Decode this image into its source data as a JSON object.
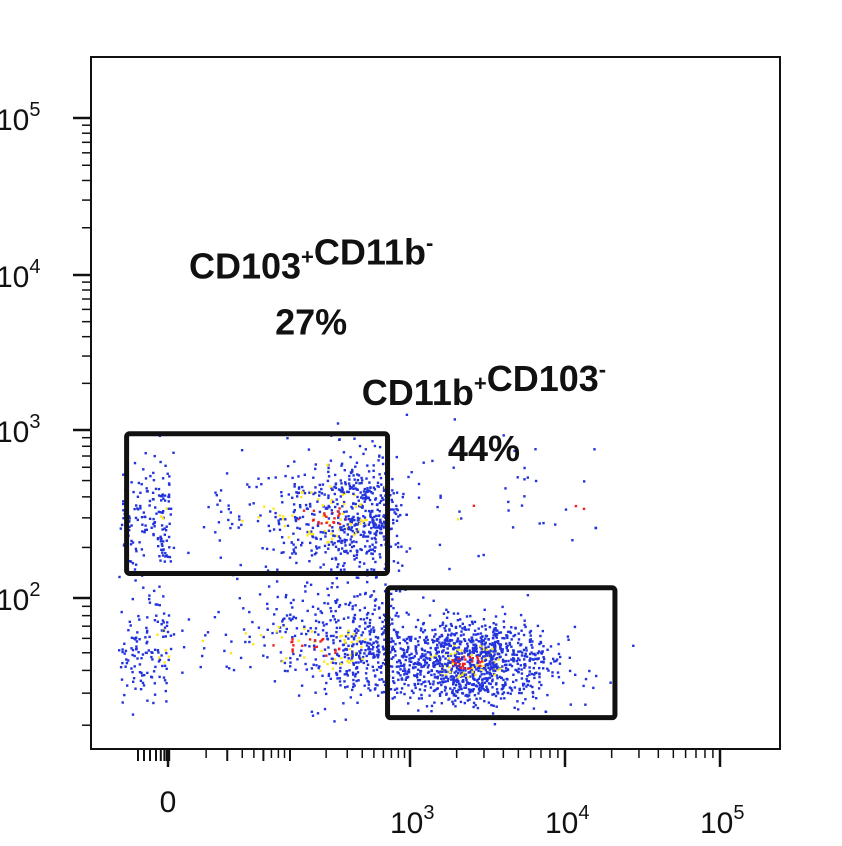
{
  "chart_data": {
    "type": "scatter",
    "title": "",
    "xlabel": "",
    "ylabel": "",
    "x_scale": "biexponential",
    "y_scale": "log",
    "xlim": [
      -300,
      100000
    ],
    "ylim": [
      18,
      200000
    ],
    "grid": false,
    "x_ticks": [
      {
        "value": 0,
        "base": "0",
        "exp": ""
      },
      {
        "value": 1000,
        "base": "10",
        "exp": "3"
      },
      {
        "value": 10000,
        "base": "10",
        "exp": "4"
      },
      {
        "value": 100000,
        "base": "10",
        "exp": "5"
      }
    ],
    "y_ticks": [
      {
        "value": 100,
        "base": "10",
        "exp": "2"
      },
      {
        "value": 1000,
        "base": "10",
        "exp": "3"
      },
      {
        "value": 10000,
        "base": "10",
        "exp": "4"
      },
      {
        "value": 100000,
        "base": "10",
        "exp": "5"
      }
    ],
    "gates": [
      {
        "name_parts": [
          {
            "text": "CD103",
            "sup": "+"
          },
          {
            "text": "CD11b",
            "sup": "-"
          }
        ],
        "percent": "27%",
        "x_range": [
          -180,
          650
        ],
        "y_range": [
          140,
          950
        ],
        "label_anchor": [
          150,
          9500
        ]
      },
      {
        "name_parts": [
          {
            "text": "CD11b",
            "sup": "+"
          },
          {
            "text": "CD103",
            "sup": "-"
          }
        ],
        "percent": "44%",
        "x_range": [
          650,
          21000
        ],
        "y_range": [
          22,
          115
        ],
        "label_anchor": [
          3000,
          1450
        ]
      }
    ],
    "populations": [
      {
        "name": "upper-left cluster",
        "x_center": 200,
        "x_spread": 270,
        "y_center": 310,
        "y_spread": 0.62,
        "count": 900
      },
      {
        "name": "lower-left cluster",
        "x_center": 170,
        "x_spread": 290,
        "y_center": 55,
        "y_spread": 0.55,
        "count": 700
      },
      {
        "name": "lower-right cluster",
        "x_center": 2300,
        "x_spread": 1.0,
        "y_center": 45,
        "y_spread": 0.4,
        "count": 1200
      },
      {
        "name": "sparse scatter",
        "x_center": 800,
        "x_spread": 1.6,
        "y_center": 400,
        "y_spread": 0.9,
        "count": 70
      }
    ],
    "density_colors": {
      "low": "#2233dd",
      "medium": "#ffe81a",
      "high": "#ee2222"
    }
  }
}
